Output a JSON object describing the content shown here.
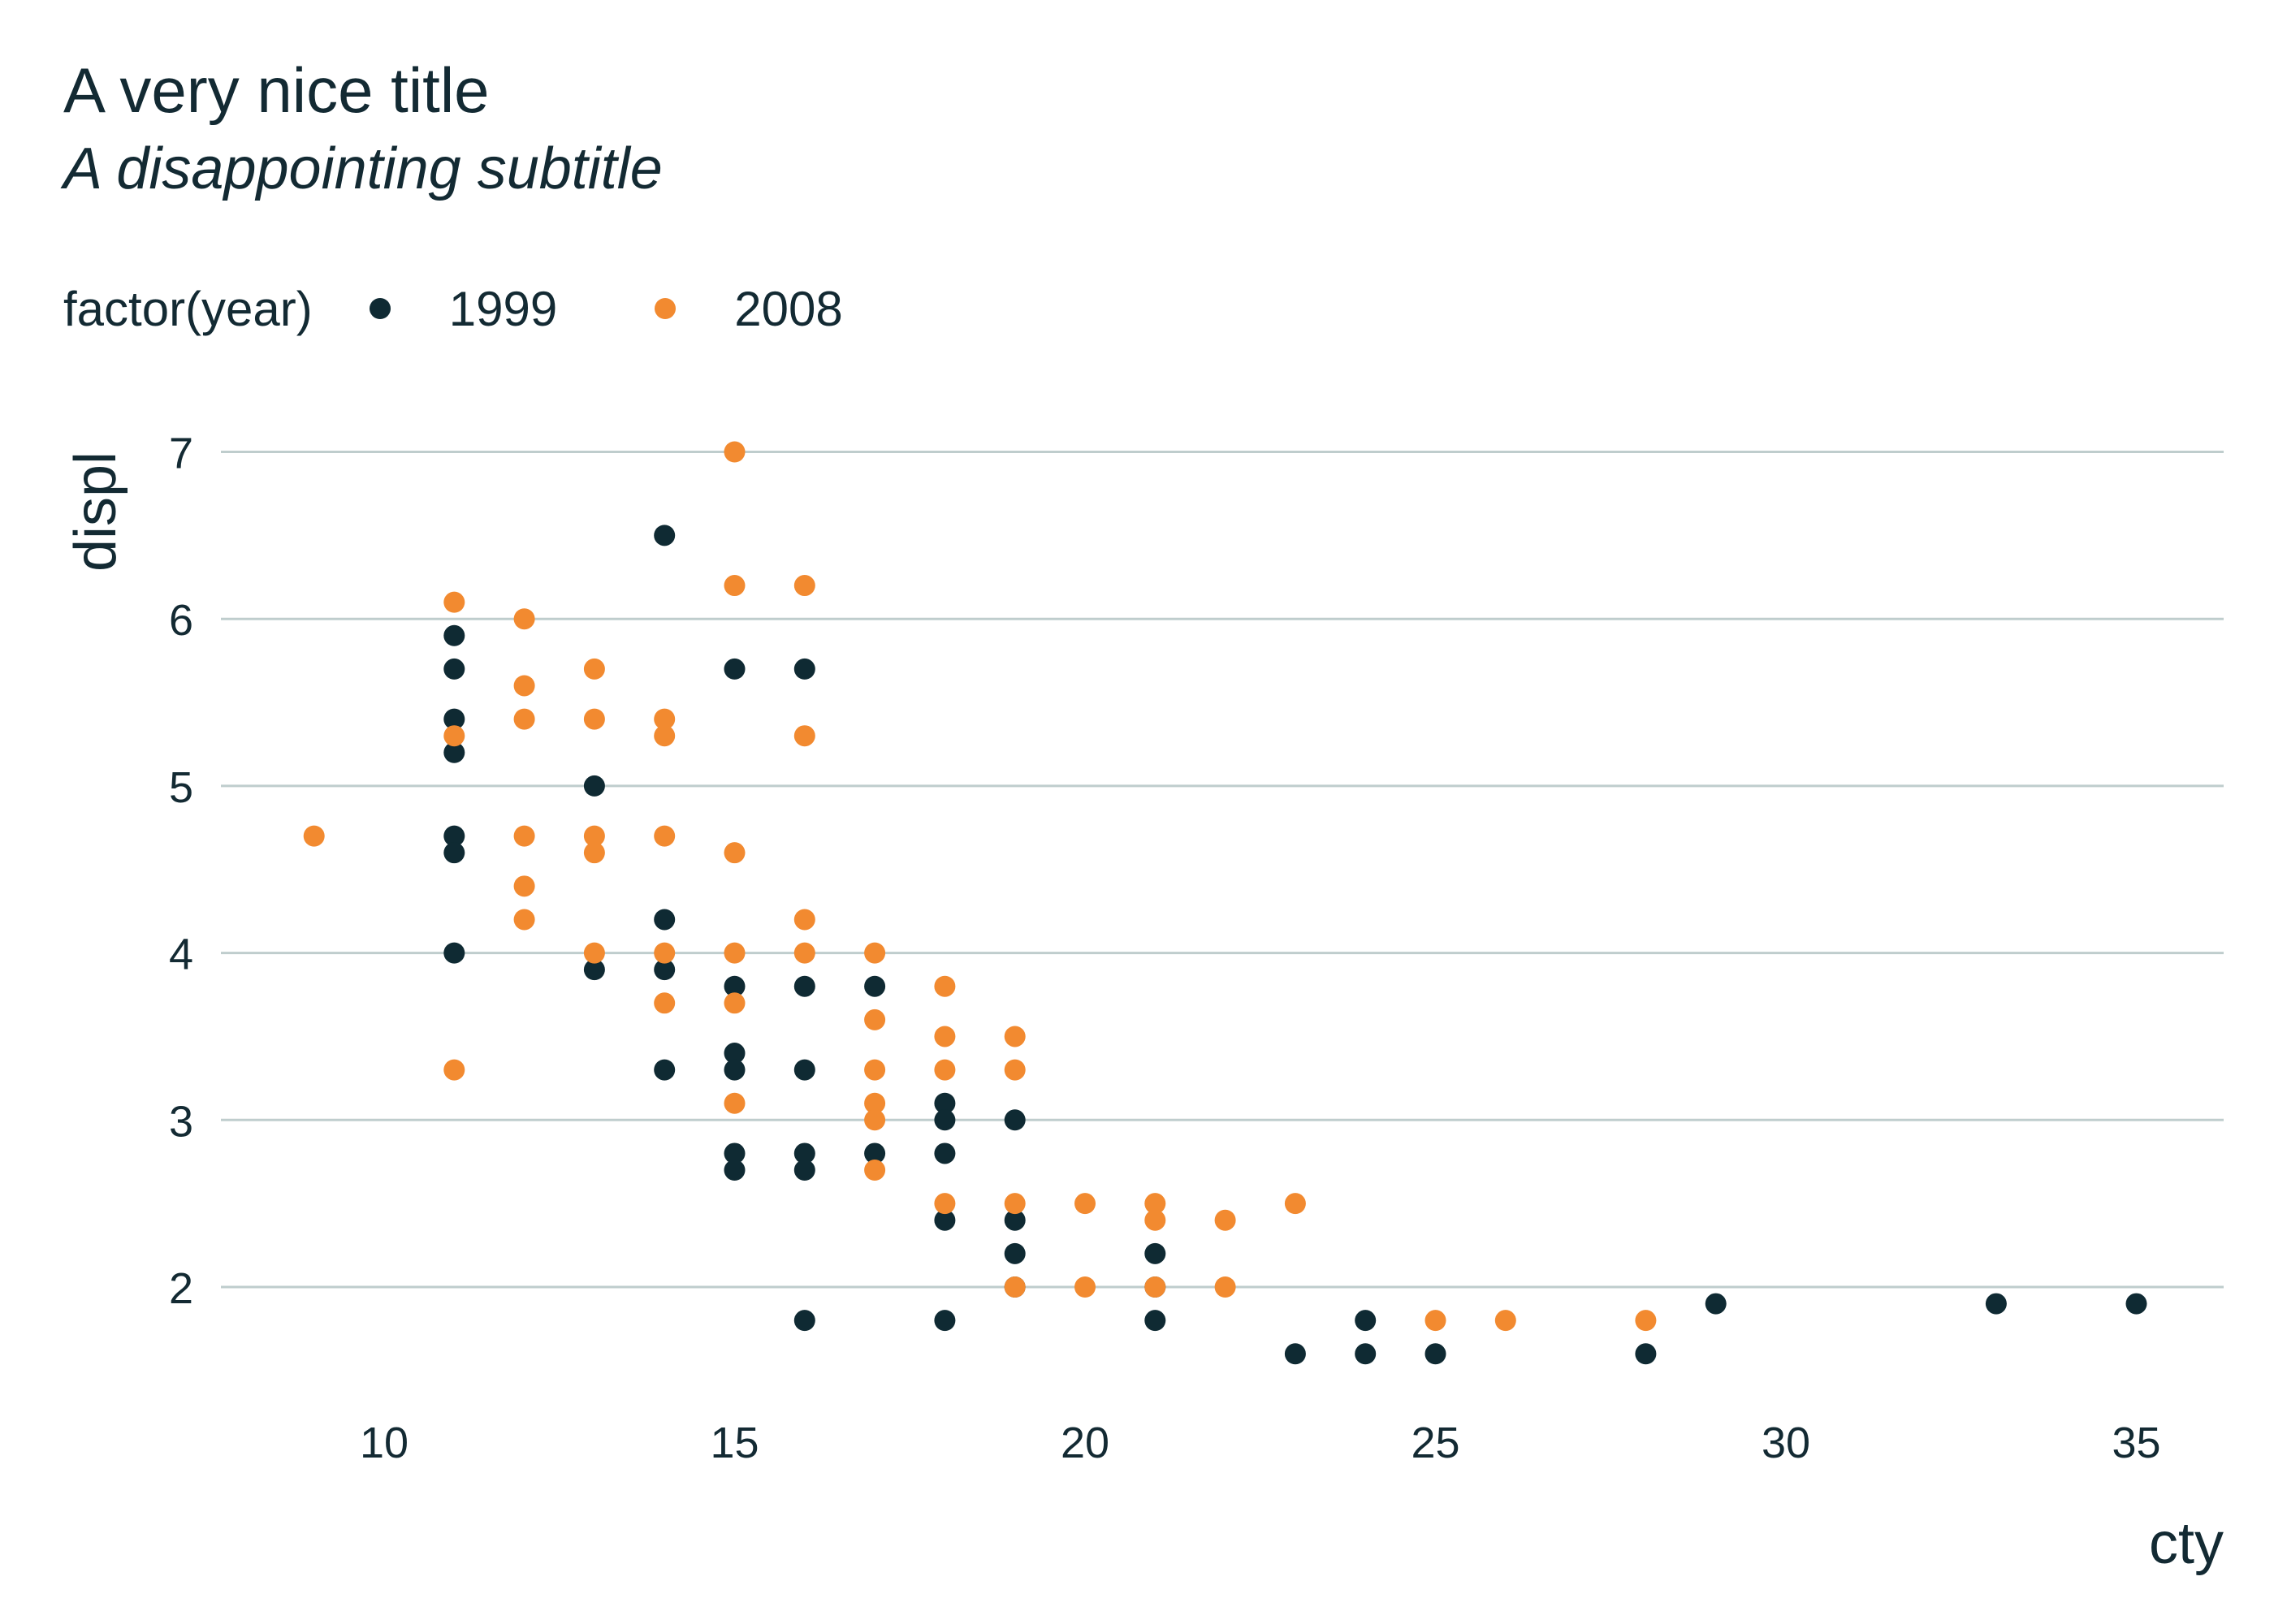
{
  "title": "A very nice title",
  "subtitle": "A disappointing subtitle",
  "legend": {
    "title": "factor(year)",
    "items": [
      {
        "label": "1999",
        "color": "#0f2a33"
      },
      {
        "label": "2008",
        "color": "#f28a30"
      }
    ]
  },
  "chart_data": {
    "type": "scatter",
    "title": "A very nice title",
    "subtitle": "A disappointing subtitle",
    "xlabel": "cty",
    "ylabel": "displ",
    "xlim": [
      8,
      36
    ],
    "ylim": [
      1.3,
      7.3
    ],
    "xticks": [
      10,
      15,
      20,
      25,
      30,
      35
    ],
    "yticks": [
      2,
      3,
      4,
      5,
      6,
      7
    ],
    "grid": "horizontal major lines",
    "legend_position": "top-left",
    "series": [
      {
        "name": "1999",
        "color": "#0f2a33",
        "points": [
          [
            11,
            5.9
          ],
          [
            11,
            5.7
          ],
          [
            11,
            5.4
          ],
          [
            11,
            5.2
          ],
          [
            11,
            4.7
          ],
          [
            11,
            4.6
          ],
          [
            11,
            4.0
          ],
          [
            13,
            5.0
          ],
          [
            13,
            3.9
          ],
          [
            14,
            6.5
          ],
          [
            14,
            4.2
          ],
          [
            14,
            3.9
          ],
          [
            14,
            3.3
          ],
          [
            15,
            5.7
          ],
          [
            15,
            3.8
          ],
          [
            15,
            3.4
          ],
          [
            15,
            3.3
          ],
          [
            15,
            2.8
          ],
          [
            15,
            2.7
          ],
          [
            16,
            5.7
          ],
          [
            16,
            3.8
          ],
          [
            16,
            3.3
          ],
          [
            16,
            2.8
          ],
          [
            16,
            2.7
          ],
          [
            16,
            1.8
          ],
          [
            17,
            3.8
          ],
          [
            17,
            2.8
          ],
          [
            18,
            3.1
          ],
          [
            18,
            3.0
          ],
          [
            18,
            2.8
          ],
          [
            18,
            2.4
          ],
          [
            18,
            1.8
          ],
          [
            19,
            3.0
          ],
          [
            19,
            2.4
          ],
          [
            19,
            2.2
          ],
          [
            19,
            2.0
          ],
          [
            21,
            2.2
          ],
          [
            21,
            2.0
          ],
          [
            21,
            1.8
          ],
          [
            23,
            1.6
          ],
          [
            24,
            1.8
          ],
          [
            24,
            1.6
          ],
          [
            25,
            1.6
          ],
          [
            28,
            1.6
          ],
          [
            29,
            1.9
          ],
          [
            33,
            1.9
          ],
          [
            35,
            1.9
          ]
        ]
      },
      {
        "name": "2008",
        "color": "#f28a30",
        "points": [
          [
            9,
            4.7
          ],
          [
            11,
            6.1
          ],
          [
            11,
            5.3
          ],
          [
            11,
            3.3
          ],
          [
            12,
            6.0
          ],
          [
            12,
            5.6
          ],
          [
            12,
            5.4
          ],
          [
            12,
            4.7
          ],
          [
            12,
            4.4
          ],
          [
            12,
            4.2
          ],
          [
            13,
            5.7
          ],
          [
            13,
            5.4
          ],
          [
            13,
            4.7
          ],
          [
            13,
            4.6
          ],
          [
            13,
            4.0
          ],
          [
            14,
            5.4
          ],
          [
            14,
            5.3
          ],
          [
            14,
            4.7
          ],
          [
            14,
            4.0
          ],
          [
            14,
            3.7
          ],
          [
            15,
            7.0
          ],
          [
            15,
            6.2
          ],
          [
            15,
            4.6
          ],
          [
            15,
            4.0
          ],
          [
            15,
            3.7
          ],
          [
            15,
            3.1
          ],
          [
            16,
            6.2
          ],
          [
            16,
            5.3
          ],
          [
            16,
            4.2
          ],
          [
            16,
            4.0
          ],
          [
            17,
            4.0
          ],
          [
            17,
            3.6
          ],
          [
            17,
            3.3
          ],
          [
            17,
            3.1
          ],
          [
            17,
            3.0
          ],
          [
            17,
            2.7
          ],
          [
            18,
            3.8
          ],
          [
            18,
            3.5
          ],
          [
            18,
            3.3
          ],
          [
            18,
            2.5
          ],
          [
            19,
            3.5
          ],
          [
            19,
            3.3
          ],
          [
            19,
            2.5
          ],
          [
            19,
            2.0
          ],
          [
            20,
            2.5
          ],
          [
            20,
            2.0
          ],
          [
            21,
            2.5
          ],
          [
            21,
            2.4
          ],
          [
            21,
            2.0
          ],
          [
            22,
            2.4
          ],
          [
            22,
            2.0
          ],
          [
            23,
            2.5
          ],
          [
            25,
            1.8
          ],
          [
            26,
            1.8
          ],
          [
            28,
            1.8
          ]
        ]
      }
    ]
  }
}
